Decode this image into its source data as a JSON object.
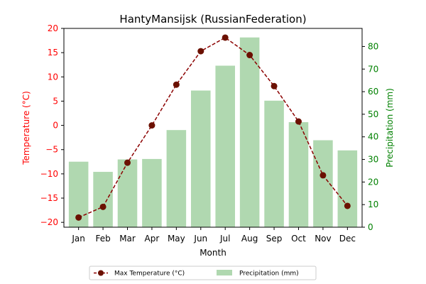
{
  "chart_data": {
    "type": "bar+line",
    "title": "HantyMansijsk (RussianFederation)",
    "xlabel": "Month",
    "categories": [
      "Jan",
      "Feb",
      "Mar",
      "Apr",
      "May",
      "Jun",
      "Jul",
      "Aug",
      "Sep",
      "Oct",
      "Nov",
      "Dec"
    ],
    "left_axis": {
      "label": "Temperature (°C)",
      "ylim": [
        -21,
        20
      ],
      "ticks": [
        20,
        15,
        10,
        5,
        0,
        -5,
        -10,
        -15,
        -20
      ],
      "color": "#ff0000"
    },
    "right_axis": {
      "label": "Precipitation (mm)",
      "ylim": [
        0,
        88
      ],
      "ticks": [
        0,
        10,
        20,
        30,
        40,
        50,
        60,
        70,
        80
      ],
      "color": "#008000"
    },
    "series": [
      {
        "name": "Max Temperature (°C)",
        "kind": "line",
        "axis": "left",
        "color": "#8b0000",
        "marker_color": "#6b1000",
        "values": [
          -19.0,
          -16.8,
          -7.7,
          0.0,
          8.4,
          15.3,
          18.1,
          14.5,
          8.1,
          0.8,
          -10.3,
          -16.6
        ]
      },
      {
        "name": "Precipitation (mm)",
        "kind": "bar",
        "axis": "right",
        "color": "#b0d8b0",
        "values": [
          29,
          24.5,
          30,
          30.2,
          43,
          60.5,
          71.5,
          84,
          56,
          46.5,
          38.5,
          34
        ]
      }
    ],
    "legend_position": "bottom-center"
  }
}
